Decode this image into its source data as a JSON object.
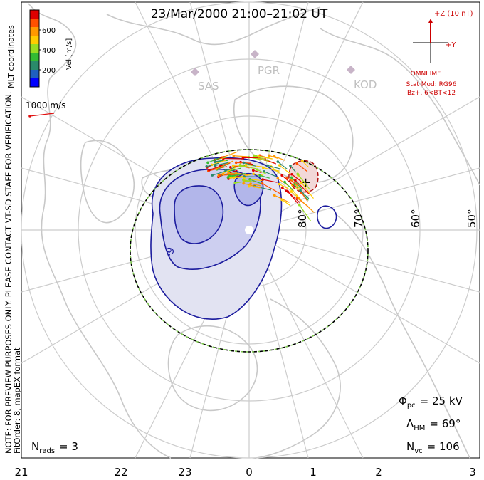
{
  "title": "23/Mar/2000 21:00–21:02 UT",
  "side_notes": {
    "coord": "MLT coordinates",
    "preview": "NOTE: FOR PREVIEW PURPOSES ONLY. PLEASE CONTACT VT-SD STAFF FOR VERIFICATION.",
    "fit": "FitOrder: 8, mapEX format"
  },
  "colorbar": {
    "label": "Vel [m/s]",
    "ticks": [
      "600",
      "400",
      "200"
    ],
    "colors": [
      "#e00000",
      "#ff5000",
      "#ff9900",
      "#ffcc00",
      "#99dd22",
      "#33bb33",
      "#2a8a6a",
      "#1f5fbf",
      "#0000ff"
    ]
  },
  "scale_vector": {
    "label": "1000 m/s",
    "color": "#e01010"
  },
  "imf": {
    "z_label": "+Z (10 nT)",
    "y_label": "+Y",
    "source": "OMNI IMF",
    "model_line1": "Stat Mod: RG96",
    "model_line2": "Bz+, 6<BT<12",
    "color": "#cc0000"
  },
  "stations": [
    "SAS",
    "PGR",
    "KOD"
  ],
  "lat_labels": [
    "80°",
    "70°",
    "60°",
    "50°"
  ],
  "mlt_labels": [
    "21",
    "22",
    "23",
    "0",
    "1",
    "2",
    "3"
  ],
  "stats": {
    "phi_sym": "Φ",
    "phi_sub": "pc",
    "phi_val": "= 25 kV",
    "lam_sym": "Λ",
    "lam_sub": "HM",
    "lam_val": "= 69°",
    "nvc_sym": "N",
    "nvc_sub": "vc",
    "nvc_val": "= 106",
    "nrads_sym": "N",
    "nrads_sub": "rads",
    "nrads_val": "= 3"
  },
  "contour_labels": [
    "-9"
  ],
  "marker_plus": "+",
  "marker_minus": "−",
  "colors": {
    "land": "#c8c8c8",
    "grid": "#cccccc",
    "negative_cell": "#1c1c9e",
    "positive_cell": "#b01010",
    "boundary_dash": "#7ec850"
  }
}
